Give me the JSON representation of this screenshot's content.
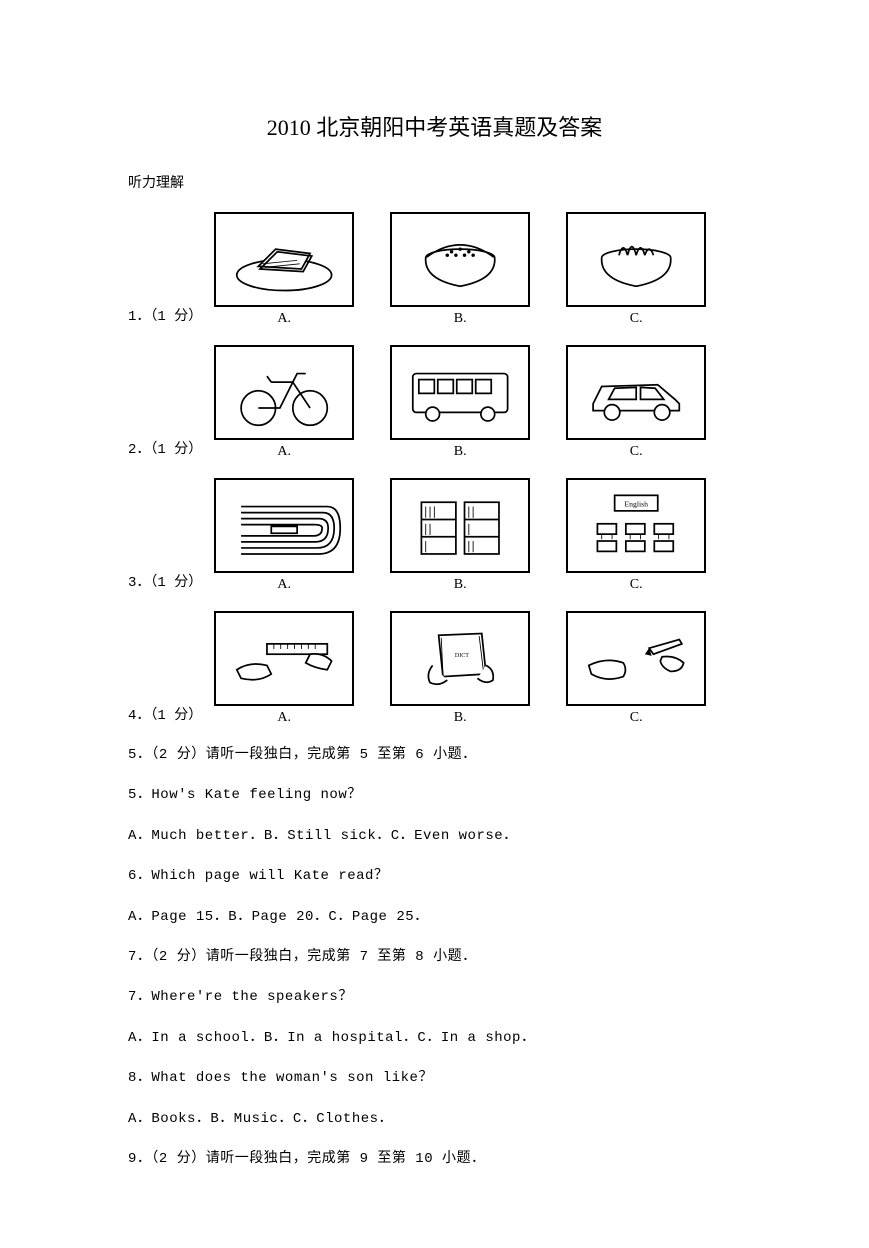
{
  "document": {
    "title": "2010 北京朝阳中考英语真题及答案",
    "section_header": "听力理解",
    "title_fontsize": 22,
    "body_fontsize": 14,
    "text_color": "#000000",
    "background_color": "#ffffff",
    "border_color": "#000000"
  },
  "picture_questions": [
    {
      "label": "1．（1 分）",
      "options": [
        {
          "letter": "A.",
          "icon": "sandwich-plate"
        },
        {
          "letter": "B.",
          "icon": "rice-bowl"
        },
        {
          "letter": "C.",
          "icon": "noodle-bowl"
        }
      ]
    },
    {
      "label": "2．（1 分）",
      "options": [
        {
          "letter": "A.",
          "icon": "bicycle"
        },
        {
          "letter": "B.",
          "icon": "bus"
        },
        {
          "letter": "C.",
          "icon": "car"
        }
      ]
    },
    {
      "label": "3．（1 分）",
      "options": [
        {
          "letter": "A.",
          "icon": "stadium-track"
        },
        {
          "letter": "B.",
          "icon": "bookshelves"
        },
        {
          "letter": "C.",
          "icon": "classroom"
        }
      ]
    },
    {
      "label": "4．（1 分）",
      "options": [
        {
          "letter": "A.",
          "icon": "ruler-hand"
        },
        {
          "letter": "B.",
          "icon": "book-hand"
        },
        {
          "letter": "C.",
          "icon": "pen-hand"
        }
      ]
    }
  ],
  "text_questions": [
    "5．（2 分）请听一段独白，完成第 5 至第 6 小题．",
    "5．How's Kate feeling now？",
    "A．Much better．B．Still sick．C．Even worse．",
    "6．Which page will Kate read？",
    "A．Page 15．B．Page 20．C．Page 25．",
    "7．（2 分）请听一段独白，完成第 7 至第 8 小题．",
    "7．Where're the speakers？",
    "A．In a school．B．In a hospital．C．In a shop．",
    "8．What does the woman's son like？",
    "A．Books．B．Music．C．Clothes．",
    "9．（2 分）请听一段独白，完成第 9 至第 10 小题．"
  ],
  "icons": {
    "sandwich-plate": "plate-food",
    "rice-bowl": "bowl-grain",
    "noodle-bowl": "bowl-noodle",
    "bicycle": "bike",
    "bus": "bus",
    "car": "car",
    "stadium-track": "track",
    "bookshelves": "shelves",
    "classroom": "classroom",
    "ruler-hand": "ruler",
    "book-hand": "book",
    "pen-hand": "pen"
  }
}
